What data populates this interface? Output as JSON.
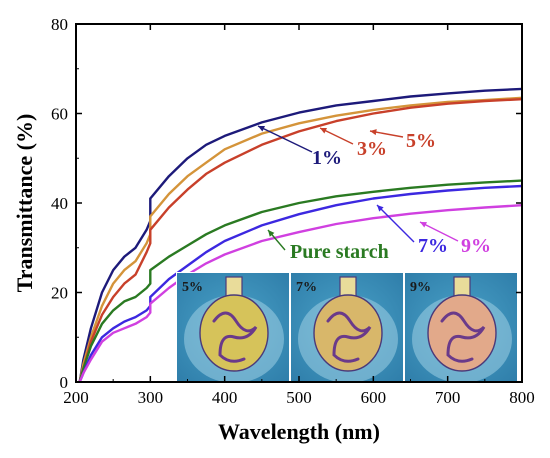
{
  "chart_data": {
    "type": "line",
    "xlabel": "Wavelength (nm)",
    "ylabel": "Transmittance (%)",
    "xlim": [
      200,
      800
    ],
    "ylim": [
      0,
      80
    ],
    "x_ticks": [
      200,
      300,
      400,
      500,
      600,
      700,
      800
    ],
    "y_ticks": [
      0,
      20,
      40,
      60,
      80
    ],
    "x_tick_labels": [
      "200",
      "300",
      "400",
      "500",
      "600",
      "700",
      "800"
    ],
    "y_tick_labels": [
      "0",
      "20",
      "40",
      "60",
      "80"
    ],
    "grid": false,
    "series": [
      {
        "name": "1%",
        "color": "#1d1a7a",
        "points": [
          [
            205,
            0
          ],
          [
            210,
            5
          ],
          [
            220,
            12
          ],
          [
            235,
            20
          ],
          [
            250,
            25
          ],
          [
            265,
            28
          ],
          [
            280,
            30
          ],
          [
            295,
            34
          ],
          [
            300,
            36
          ],
          [
            300,
            41
          ],
          [
            325,
            46
          ],
          [
            350,
            50
          ],
          [
            375,
            53
          ],
          [
            400,
            55
          ],
          [
            450,
            58
          ],
          [
            500,
            60.2
          ],
          [
            550,
            61.8
          ],
          [
            600,
            62.8
          ],
          [
            650,
            63.8
          ],
          [
            700,
            64.5
          ],
          [
            750,
            65.1
          ],
          [
            800,
            65.5
          ]
        ]
      },
      {
        "name": "3%",
        "color": "#d4943a",
        "points": [
          [
            205,
            0
          ],
          [
            210,
            4
          ],
          [
            220,
            10
          ],
          [
            235,
            17
          ],
          [
            250,
            22
          ],
          [
            265,
            25
          ],
          [
            280,
            27
          ],
          [
            295,
            31
          ],
          [
            300,
            33
          ],
          [
            300,
            37
          ],
          [
            325,
            42
          ],
          [
            350,
            46
          ],
          [
            375,
            49
          ],
          [
            400,
            52
          ],
          [
            450,
            55.5
          ],
          [
            500,
            57.8
          ],
          [
            550,
            59.5
          ],
          [
            600,
            60.8
          ],
          [
            650,
            61.8
          ],
          [
            700,
            62.6
          ],
          [
            750,
            63
          ],
          [
            800,
            63.5
          ]
        ]
      },
      {
        "name": "5%",
        "color": "#c8402a",
        "points": [
          [
            205,
            0
          ],
          [
            210,
            3
          ],
          [
            220,
            9
          ],
          [
            235,
            15
          ],
          [
            250,
            19
          ],
          [
            265,
            22
          ],
          [
            280,
            24
          ],
          [
            295,
            29
          ],
          [
            300,
            31
          ],
          [
            300,
            34
          ],
          [
            325,
            39
          ],
          [
            350,
            43
          ],
          [
            375,
            46.5
          ],
          [
            400,
            49
          ],
          [
            450,
            53
          ],
          [
            500,
            56
          ],
          [
            550,
            58.3
          ],
          [
            600,
            60
          ],
          [
            650,
            61.3
          ],
          [
            700,
            62.2
          ],
          [
            750,
            62.8
          ],
          [
            800,
            63.2
          ]
        ]
      },
      {
        "name": "Pure starch",
        "color": "#2a7a22",
        "points": [
          [
            205,
            0
          ],
          [
            210,
            3
          ],
          [
            220,
            8
          ],
          [
            235,
            13
          ],
          [
            250,
            16
          ],
          [
            265,
            18
          ],
          [
            280,
            19
          ],
          [
            295,
            21
          ],
          [
            300,
            22
          ],
          [
            300,
            25
          ],
          [
            325,
            28
          ],
          [
            350,
            30.5
          ],
          [
            375,
            33
          ],
          [
            400,
            35
          ],
          [
            450,
            38
          ],
          [
            500,
            40
          ],
          [
            550,
            41.5
          ],
          [
            600,
            42.5
          ],
          [
            650,
            43.4
          ],
          [
            700,
            44.1
          ],
          [
            750,
            44.6
          ],
          [
            800,
            45
          ]
        ]
      },
      {
        "name": "7%",
        "color": "#3c28e0",
        "points": [
          [
            205,
            0
          ],
          [
            210,
            2
          ],
          [
            220,
            6
          ],
          [
            235,
            10
          ],
          [
            250,
            12
          ],
          [
            265,
            13.5
          ],
          [
            280,
            14.5
          ],
          [
            295,
            16
          ],
          [
            300,
            17
          ],
          [
            300,
            19
          ],
          [
            325,
            23
          ],
          [
            350,
            26
          ],
          [
            375,
            29
          ],
          [
            400,
            31.5
          ],
          [
            450,
            35
          ],
          [
            500,
            37.5
          ],
          [
            550,
            39.5
          ],
          [
            600,
            41
          ],
          [
            650,
            42
          ],
          [
            700,
            42.8
          ],
          [
            750,
            43.4
          ],
          [
            800,
            43.8
          ]
        ]
      },
      {
        "name": "9%",
        "color": "#d040e0",
        "points": [
          [
            205,
            0
          ],
          [
            210,
            2
          ],
          [
            220,
            5
          ],
          [
            235,
            9
          ],
          [
            250,
            11
          ],
          [
            265,
            12
          ],
          [
            280,
            13
          ],
          [
            295,
            14.5
          ],
          [
            300,
            15.5
          ],
          [
            300,
            17.5
          ],
          [
            325,
            21
          ],
          [
            350,
            24
          ],
          [
            375,
            26.5
          ],
          [
            400,
            28.5
          ],
          [
            450,
            31.5
          ],
          [
            500,
            33.5
          ],
          [
            550,
            35.3
          ],
          [
            600,
            36.6
          ],
          [
            650,
            37.6
          ],
          [
            700,
            38.4
          ],
          [
            750,
            39
          ],
          [
            800,
            39.5
          ]
        ]
      }
    ],
    "annotations": [
      {
        "text": "1%",
        "color": "#1d1a7a"
      },
      {
        "text": "3%",
        "color": "#c8402a"
      },
      {
        "text": "5%",
        "color": "#c8402a"
      },
      {
        "text": "Pure starch",
        "color": "#2a7a22"
      },
      {
        "text": "7%",
        "color": "#3c28e0"
      },
      {
        "text": "9%",
        "color": "#d040e0"
      }
    ],
    "inset": {
      "panels": [
        {
          "label": "5%",
          "tint": "#d6c35a"
        },
        {
          "label": "7%",
          "tint": "#d8b76a"
        },
        {
          "label": "9%",
          "tint": "#e2a98a"
        }
      ]
    }
  }
}
